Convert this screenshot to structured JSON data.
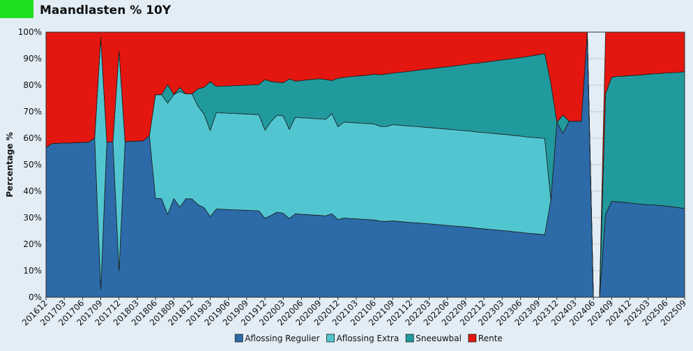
{
  "header": {
    "title": "Maandlasten % 10Y"
  },
  "chart_data": {
    "type": "area",
    "stacked": true,
    "title": "Maandlasten % 10Y",
    "xlabel": "",
    "ylabel": "Percentage %",
    "ylim": [
      0,
      100
    ],
    "yticks": [
      "0%",
      "10%",
      "20%",
      "30%",
      "40%",
      "50%",
      "60%",
      "70%",
      "80%",
      "90%",
      "100%"
    ],
    "grid": true,
    "legend_position": "bottom",
    "x": [
      "201612",
      "201701",
      "201702",
      "201703",
      "201704",
      "201705",
      "201706",
      "201707",
      "201708",
      "201709",
      "201710",
      "201711",
      "201712",
      "201801",
      "201802",
      "201803",
      "201804",
      "201805",
      "201806",
      "201807",
      "201808",
      "201809",
      "201810",
      "201811",
      "201812",
      "201901",
      "201902",
      "201903",
      "201904",
      "201905",
      "201906",
      "201907",
      "201908",
      "201909",
      "201910",
      "201911",
      "201912",
      "202001",
      "202002",
      "202003",
      "202004",
      "202005",
      "202006",
      "202007",
      "202008",
      "202009",
      "202010",
      "202011",
      "202012",
      "202101",
      "202102",
      "202103",
      "202104",
      "202105",
      "202106",
      "202107",
      "202108",
      "202109",
      "202110",
      "202111",
      "202112",
      "202201",
      "202202",
      "202203",
      "202204",
      "202205",
      "202206",
      "202207",
      "202208",
      "202209",
      "202210",
      "202211",
      "202212",
      "202301",
      "202302",
      "202303",
      "202304",
      "202305",
      "202306",
      "202307",
      "202308",
      "202309",
      "202310",
      "202311",
      "202312",
      "202401",
      "202402",
      "202403",
      "202404",
      "202405",
      "202406",
      "202407",
      "202408",
      "202409",
      "202410",
      "202411",
      "202412",
      "202501",
      "202502",
      "202503",
      "202504",
      "202505",
      "202506",
      "202507",
      "202508",
      "202509"
    ],
    "xticks": [
      "201612",
      "201703",
      "201706",
      "201709",
      "201712",
      "201803",
      "201806",
      "201809",
      "201812",
      "201903",
      "201906",
      "201909",
      "201912",
      "202003",
      "202006",
      "202009",
      "202012",
      "202103",
      "202106",
      "202109",
      "202112",
      "202203",
      "202206",
      "202209",
      "202212",
      "202303",
      "202306",
      "202309",
      "202312",
      "202403",
      "202406",
      "202409",
      "202412",
      "202503",
      "202506",
      "202509"
    ],
    "series": [
      {
        "name": "Aflossing Regulier",
        "color": "#2c6aa8",
        "values": [
          56.5,
          58,
          58.1,
          58.2,
          58.2,
          58.3,
          58.4,
          58.5,
          60,
          3,
          58.5,
          58.6,
          10,
          58.7,
          58.8,
          58.9,
          59,
          61,
          37.3,
          37.2,
          31.2,
          37.2,
          34,
          37.2,
          37.1,
          34.9,
          33.8,
          30.4,
          33.3,
          33.2,
          33.1,
          33,
          32.9,
          32.8,
          32.7,
          32.6,
          29.8,
          30.9,
          32.1,
          31.7,
          29.7,
          31.5,
          31.3,
          31.2,
          31.0,
          30.9,
          30.7,
          31.5,
          29.3,
          29.9,
          29.7,
          29.6,
          29.4,
          29.3,
          29.1,
          28.7,
          28.6,
          28.8,
          28.6,
          28.4,
          28.2,
          28.1,
          27.9,
          27.7,
          27.5,
          27.3,
          27.1,
          26.9,
          26.7,
          26.5,
          26.3,
          26.0,
          25.8,
          25.6,
          25.4,
          25.2,
          25.0,
          24.7,
          24.5,
          24.2,
          24.0,
          23.8,
          23.6,
          36.7,
          66.0,
          61.8,
          66.4,
          66.4,
          66.4,
          100,
          0,
          0,
          31.3,
          36.2,
          36.0,
          35.8,
          35.6,
          35.3,
          35.1,
          34.9,
          34.8,
          34.6,
          34.4,
          34.1,
          33.8,
          33.5
        ]
      },
      {
        "name": "Aflossing Extra",
        "color": "#52c6d0",
        "values": [
          0,
          0,
          0,
          0,
          0,
          0,
          0,
          0,
          0,
          95,
          0,
          0,
          83,
          0,
          0,
          0,
          0,
          0,
          39.1,
          39.2,
          42,
          39.2,
          43.6,
          39.5,
          39.6,
          37.1,
          35.2,
          32.5,
          36.3,
          36.3,
          36.3,
          36.3,
          36.3,
          36.3,
          36.3,
          36.3,
          33.2,
          35.4,
          36.6,
          36.7,
          33.6,
          36.4,
          36.4,
          36.4,
          36.4,
          36.4,
          36.4,
          37.8,
          35.0,
          36.2,
          36.2,
          36.2,
          36.2,
          36.2,
          36.2,
          35.7,
          35.8,
          36.3,
          36.3,
          36.3,
          36.3,
          36.3,
          36.3,
          36.3,
          36.3,
          36.3,
          36.3,
          36.3,
          36.3,
          36.3,
          36.3,
          36.3,
          36.3,
          36.3,
          36.3,
          36.3,
          36.3,
          36.3,
          36.3,
          36.3,
          36.3,
          36.3,
          36.3,
          0,
          0,
          0,
          0,
          0,
          0,
          0,
          0,
          0,
          0,
          0,
          0,
          0,
          0,
          0,
          0,
          0,
          0,
          0,
          0,
          0,
          0,
          0
        ]
      },
      {
        "name": "Sneeuwbal",
        "color": "#219a9e",
        "values": [
          0,
          0,
          0,
          0,
          0,
          0,
          0,
          0,
          0,
          0,
          0,
          0,
          0,
          0,
          0,
          0,
          0,
          0,
          0,
          0,
          7,
          0,
          1.5,
          0,
          0,
          6.6,
          10.2,
          18.4,
          9.9,
          10.1,
          10.3,
          10.5,
          10.7,
          10.9,
          11.1,
          11.3,
          19.1,
          15.1,
          12.4,
          12.5,
          19.0,
          13.6,
          14.0,
          14.4,
          14.8,
          15.1,
          15.0,
          12.4,
          18.3,
          16.8,
          17.3,
          17.6,
          18.0,
          18.3,
          18.8,
          19.5,
          19.8,
          19.4,
          19.9,
          20.3,
          20.8,
          21.2,
          21.7,
          22.1,
          22.6,
          23.1,
          23.5,
          24.0,
          24.5,
          25.0,
          25.5,
          26.0,
          26.5,
          27.0,
          27.5,
          28.0,
          28.5,
          29.1,
          29.6,
          30.2,
          30.8,
          31.4,
          32.0,
          44.0,
          0,
          6.9,
          0,
          0,
          0,
          0,
          0,
          0,
          45.4,
          46.8,
          47.3,
          47.6,
          48.0,
          48.4,
          48.8,
          49.2,
          49.5,
          49.8,
          50.2,
          50.6,
          51.0,
          51.6
        ]
      },
      {
        "name": "Rente",
        "color": "#e3170f",
        "values": [
          43.5,
          42,
          41.9,
          41.8,
          41.8,
          41.7,
          41.6,
          41.5,
          40,
          2,
          41.5,
          41.4,
          7,
          41.3,
          41.2,
          41.1,
          41,
          39,
          23.6,
          23.6,
          19.8,
          23.6,
          20.9,
          23.3,
          23.3,
          21.4,
          20.8,
          18.7,
          20.5,
          20.4,
          20.3,
          20.2,
          20.1,
          20.0,
          19.9,
          19.8,
          17.9,
          18.6,
          18.9,
          19.1,
          17.7,
          18.5,
          18.3,
          18.0,
          17.8,
          17.6,
          17.9,
          18.3,
          17.4,
          17.1,
          16.8,
          16.6,
          16.4,
          16.2,
          15.9,
          16.1,
          15.8,
          15.5,
          15.2,
          15.0,
          14.7,
          14.4,
          14.1,
          13.9,
          13.6,
          13.3,
          13.1,
          12.8,
          12.5,
          12.2,
          11.9,
          11.7,
          11.4,
          11.1,
          10.8,
          10.5,
          10.2,
          9.9,
          9.6,
          9.3,
          8.9,
          8.5,
          8.1,
          19.3,
          34.0,
          31.3,
          33.6,
          33.6,
          33.6,
          0,
          0,
          0,
          23.3,
          17.0,
          16.7,
          16.6,
          16.4,
          16.3,
          16.1,
          15.9,
          15.7,
          15.6,
          15.4,
          15.3,
          15.2,
          14.9
        ]
      }
    ]
  }
}
